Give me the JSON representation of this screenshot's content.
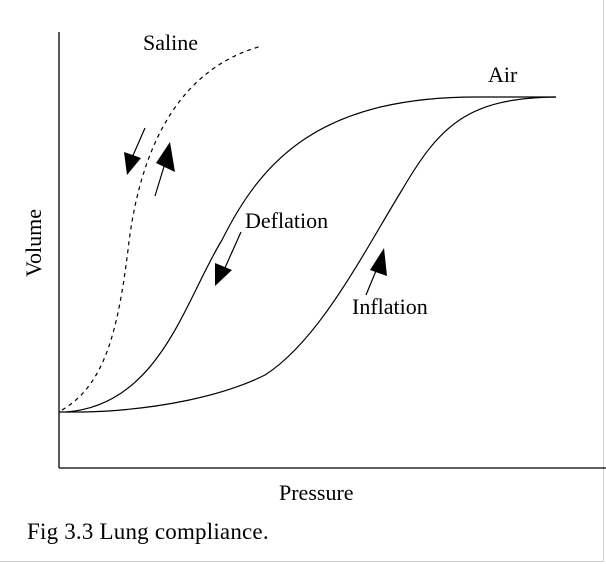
{
  "figure": {
    "caption": "Fig 3.3  Lung compliance.",
    "axes": {
      "x_label": "Pressure",
      "y_label": "Volume"
    },
    "curves": {
      "saline": {
        "label": "Saline",
        "style": "dashed"
      },
      "air": {
        "label": "Air",
        "style": "solid"
      }
    },
    "annotations": {
      "deflation": "Deflation",
      "inflation": "Inflation"
    },
    "colors": {
      "ink": "#000000",
      "background": "#ffffff"
    }
  }
}
